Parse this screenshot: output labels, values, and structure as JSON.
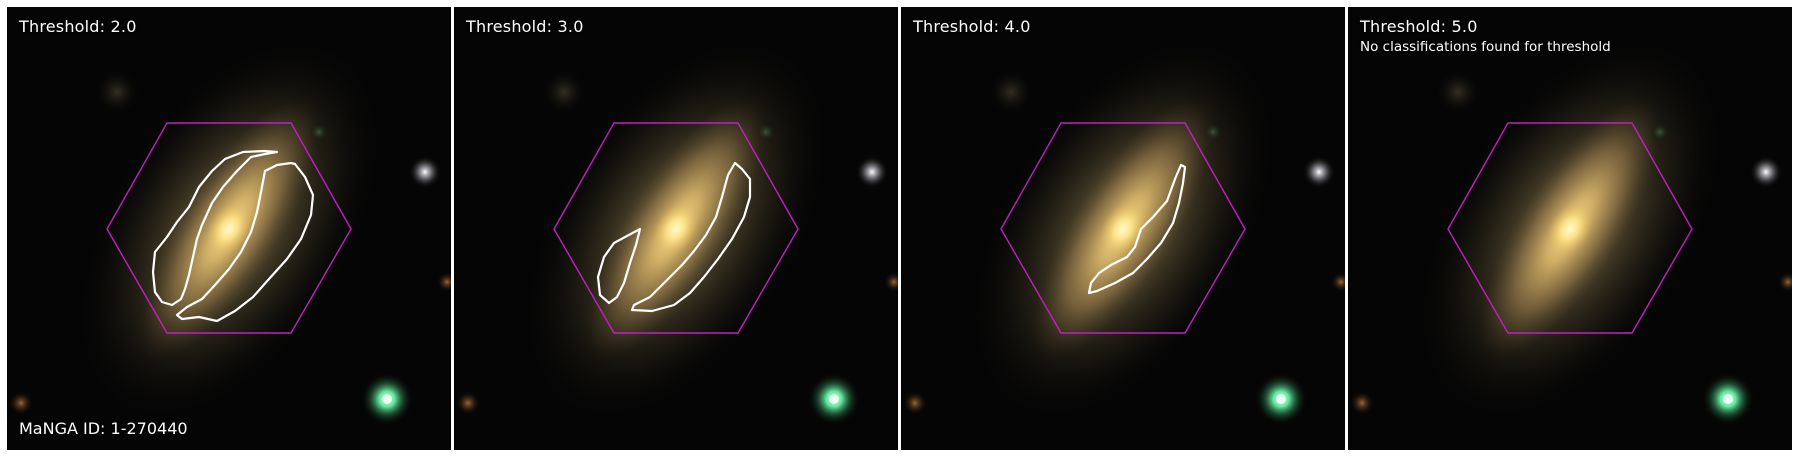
{
  "panels": [
    {
      "threshold_label": "Threshold: 2.0",
      "note": "",
      "id_label": "MaNGA ID: 1-270440"
    },
    {
      "threshold_label": "Threshold: 3.0",
      "note": "",
      "id_label": ""
    },
    {
      "threshold_label": "Threshold: 4.0",
      "note": "",
      "id_label": ""
    },
    {
      "threshold_label": "Threshold: 5.0",
      "note": "No classifications found for threshold",
      "id_label": ""
    }
  ],
  "colors": {
    "hexagon": "#c020c0",
    "contour": "#ffffff",
    "background": "#050505"
  }
}
